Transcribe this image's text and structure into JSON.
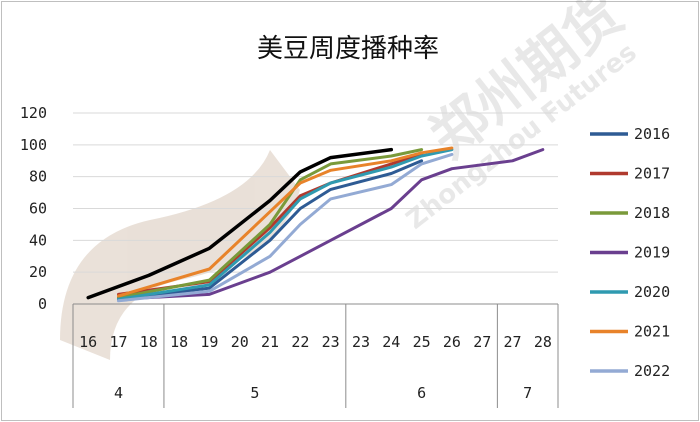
{
  "chart_data": {
    "type": "line",
    "title": "美豆周度播种率",
    "watermark": "郑州期货 Zhongzhou Futures",
    "ylim": [
      0,
      120
    ],
    "yticks": [
      0,
      20,
      40,
      60,
      80,
      100,
      120
    ],
    "weeks": [
      "16",
      "17",
      "18",
      "18",
      "19",
      "20",
      "21",
      "22",
      "23",
      "23",
      "24",
      "25",
      "26",
      "27",
      "27",
      "28"
    ],
    "months": [
      {
        "label": "4",
        "span": [
          0,
          2
        ]
      },
      {
        "label": "5",
        "span": [
          3,
          8
        ]
      },
      {
        "label": "6",
        "span": [
          9,
          13
        ]
      },
      {
        "label": "7",
        "span": [
          14,
          15
        ]
      }
    ],
    "legend_position": "right",
    "series": [
      {
        "name": "2016",
        "color": "#2e5b94",
        "values": [
          null,
          3,
          null,
          null,
          10,
          null,
          40,
          60,
          72,
          null,
          82,
          90,
          null,
          null,
          null,
          null
        ]
      },
      {
        "name": "2017",
        "color": "#b03a2e",
        "values": [
          null,
          6,
          null,
          null,
          14,
          null,
          48,
          68,
          76,
          null,
          88,
          94,
          null,
          null,
          null,
          null
        ]
      },
      {
        "name": "2018",
        "color": "#7a9a3a",
        "values": [
          null,
          4,
          null,
          null,
          15,
          null,
          50,
          78,
          88,
          null,
          93,
          97,
          null,
          null,
          null,
          null
        ]
      },
      {
        "name": "2019",
        "color": "#6a3f8f",
        "values": [
          null,
          3,
          null,
          null,
          6,
          null,
          20,
          30,
          40,
          null,
          60,
          78,
          85,
          null,
          90,
          97
        ]
      },
      {
        "name": "2020",
        "color": "#2f9ab0",
        "values": [
          null,
          3,
          null,
          null,
          12,
          null,
          45,
          66,
          76,
          null,
          86,
          93,
          97,
          null,
          null,
          null
        ]
      },
      {
        "name": "2021",
        "color": "#e8832a",
        "values": [
          null,
          5,
          null,
          null,
          22,
          null,
          58,
          76,
          84,
          null,
          90,
          95,
          98,
          null,
          null,
          null
        ]
      },
      {
        "name": "2022",
        "color": "#93aad4",
        "values": [
          null,
          2,
          null,
          null,
          8,
          null,
          30,
          50,
          66,
          null,
          75,
          88,
          94,
          null,
          null,
          null
        ]
      },
      {
        "name": "",
        "color": "#000000",
        "values": [
          4,
          null,
          18,
          null,
          35,
          null,
          65,
          83,
          92,
          null,
          97,
          null,
          null,
          null,
          null,
          null
        ]
      }
    ]
  }
}
